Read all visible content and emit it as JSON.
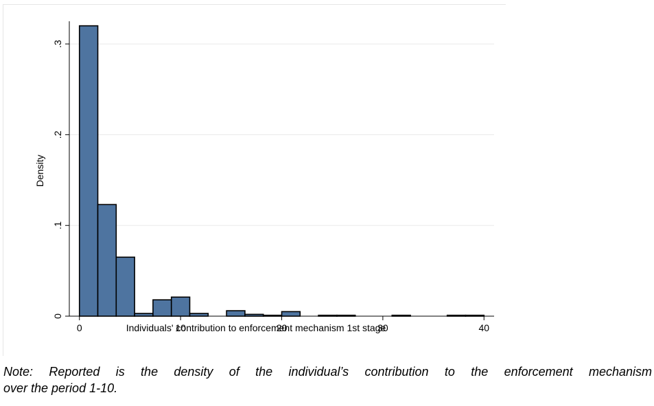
{
  "chart_data": {
    "type": "bar",
    "subtype": "histogram",
    "xlabel": "Individuals' contribution to enforcement mechanism 1st stage",
    "ylabel": "Density",
    "xlim": [
      -1,
      41
    ],
    "ylim": [
      0,
      0.325
    ],
    "x_ticks": [
      0,
      10,
      20,
      30,
      40
    ],
    "x_tick_labels": [
      "0",
      "10",
      "20",
      "30",
      "40"
    ],
    "y_ticks": [
      0,
      0.1,
      0.2,
      0.3
    ],
    "y_tick_labels": [
      "0",
      ".1",
      ".2",
      ".3"
    ],
    "bin_width": 1.818,
    "bins": [
      {
        "x0": 0.0,
        "x1": 1.818,
        "density": 0.32
      },
      {
        "x0": 1.818,
        "x1": 3.636,
        "density": 0.123
      },
      {
        "x0": 3.636,
        "x1": 5.455,
        "density": 0.065
      },
      {
        "x0": 5.455,
        "x1": 7.273,
        "density": 0.003
      },
      {
        "x0": 7.273,
        "x1": 9.091,
        "density": 0.018
      },
      {
        "x0": 9.091,
        "x1": 10.909,
        "density": 0.021
      },
      {
        "x0": 10.909,
        "x1": 12.727,
        "density": 0.003
      },
      {
        "x0": 12.727,
        "x1": 14.545,
        "density": 0.0
      },
      {
        "x0": 14.545,
        "x1": 16.364,
        "density": 0.006
      },
      {
        "x0": 16.364,
        "x1": 18.182,
        "density": 0.002
      },
      {
        "x0": 18.182,
        "x1": 20.0,
        "density": 0.001
      },
      {
        "x0": 20.0,
        "x1": 21.818,
        "density": 0.005
      },
      {
        "x0": 21.818,
        "x1": 23.636,
        "density": 0.0
      },
      {
        "x0": 23.636,
        "x1": 25.455,
        "density": 0.001
      },
      {
        "x0": 25.455,
        "x1": 27.273,
        "density": 0.001
      },
      {
        "x0": 27.273,
        "x1": 29.091,
        "density": 0.0
      },
      {
        "x0": 29.091,
        "x1": 30.909,
        "density": 0.0
      },
      {
        "x0": 30.909,
        "x1": 32.727,
        "density": 0.001
      },
      {
        "x0": 32.727,
        "x1": 34.545,
        "density": 0.0
      },
      {
        "x0": 34.545,
        "x1": 36.364,
        "density": 0.0
      },
      {
        "x0": 36.364,
        "x1": 38.182,
        "density": 0.001
      },
      {
        "x0": 38.182,
        "x1": 40.0,
        "density": 0.001
      }
    ],
    "grid": true,
    "bar_color": "#4e74a0",
    "bar_edge_color": "#000000",
    "grid_color": "#eaeaea"
  },
  "caption": {
    "line1": "Note: Reported is the density of the individual’s contribution to the enforcement mechanism",
    "line2": "over the period 1-10."
  }
}
